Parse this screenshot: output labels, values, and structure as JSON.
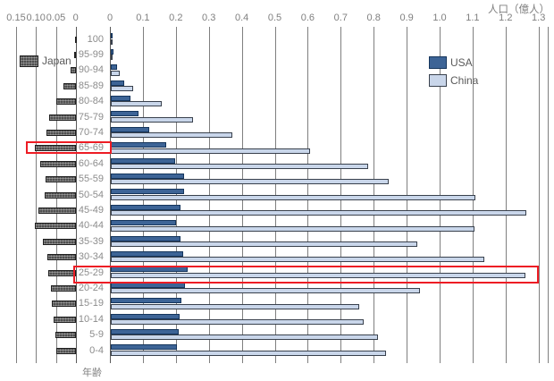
{
  "window": {
    "title": "人口（億人）"
  },
  "legend": {
    "japan": "Japan",
    "usa": "USA",
    "china": "China"
  },
  "colors": {
    "usa_fill": "#3d6496",
    "usa_border": "#15355c",
    "china_fill": "#c9d6ea",
    "china_border": "#39414d",
    "japan_fill": "#4f4f4f",
    "japan_border": "#1f1f1f",
    "grid": "#7f7f7f",
    "axis_text": "#7f7f7f",
    "category_text": "#8c8c8c",
    "highlight": "#ed1c24",
    "background": "#ffffff"
  },
  "chart_data": {
    "type": "bar",
    "orientation": "horizontal",
    "title": "人口（億人）",
    "ylabel": "年齢",
    "unit": "億人",
    "grid": true,
    "categories": [
      "100",
      "95-99",
      "90-94",
      "85-89",
      "80-84",
      "75-79",
      "70-74",
      "65-69",
      "60-64",
      "55-59",
      "50-54",
      "45-49",
      "40-44",
      "35-39",
      "30-34",
      "25-29",
      "20-24",
      "15-19",
      "10-14",
      "5-9",
      "0-4"
    ],
    "left_panel": {
      "name": "Japan",
      "direction": "right-to-left",
      "xlim": [
        0,
        0.15
      ],
      "ticks": [
        "0.15",
        "0.10",
        "0.05",
        "0"
      ],
      "values": [
        0.002,
        0.005,
        0.013,
        0.03,
        0.048,
        0.066,
        0.073,
        0.104,
        0.089,
        0.076,
        0.078,
        0.094,
        0.104,
        0.083,
        0.072,
        0.069,
        0.062,
        0.06,
        0.056,
        0.052,
        0.05
      ]
    },
    "right_panel": {
      "direction": "left-to-right",
      "xlim": [
        0,
        1.3
      ],
      "ticks": [
        "0",
        "0.1",
        "0.2",
        "0.3",
        "0.4",
        "0.5",
        "0.6",
        "0.7",
        "0.8",
        "0.9",
        "1.0",
        "1.1",
        "1.2",
        "1.3"
      ],
      "legend_position": "top-right-inside",
      "series": [
        {
          "name": "USA",
          "values": [
            0.004,
            0.009,
            0.021,
            0.043,
            0.061,
            0.084,
            0.118,
            0.17,
            0.197,
            0.224,
            0.223,
            0.212,
            0.199,
            0.212,
            0.221,
            0.233,
            0.225,
            0.214,
            0.21,
            0.206,
            0.201
          ]
        },
        {
          "name": "China",
          "values": [
            0.001,
            0.005,
            0.027,
            0.07,
            0.156,
            0.25,
            0.37,
            0.606,
            0.782,
            0.845,
            1.108,
            1.261,
            1.103,
            0.931,
            1.135,
            1.259,
            0.94,
            0.755,
            0.768,
            0.812,
            0.836
          ]
        }
      ]
    },
    "highlights": {
      "left_row": "65-69",
      "right_row": "25-29"
    }
  }
}
